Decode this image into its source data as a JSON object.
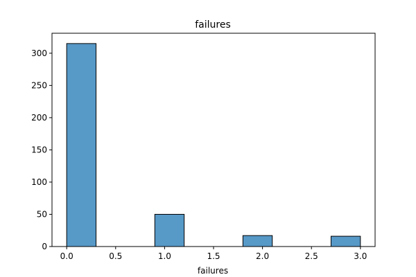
{
  "chart_data": {
    "type": "bar",
    "title": "failures",
    "xlabel": "failures",
    "ylabel": "",
    "x_ticks": [
      0.0,
      0.5,
      1.0,
      1.5,
      2.0,
      2.5,
      3.0
    ],
    "x_tick_labels": [
      "0.0",
      "0.5",
      "1.0",
      "1.5",
      "2.0",
      "2.5",
      "3.0"
    ],
    "y_ticks": [
      0,
      50,
      100,
      150,
      200,
      250,
      300
    ],
    "y_tick_labels": [
      "0",
      "50",
      "100",
      "150",
      "200",
      "250",
      "300"
    ],
    "xlim": [
      -0.15,
      3.15
    ],
    "ylim": [
      0,
      331
    ],
    "bins": [
      {
        "x0": 0.0,
        "x1": 0.3,
        "count": 315
      },
      {
        "x0": 0.3,
        "x1": 0.6,
        "count": 0
      },
      {
        "x0": 0.6,
        "x1": 0.9,
        "count": 0
      },
      {
        "x0": 0.9,
        "x1": 1.2,
        "count": 50
      },
      {
        "x0": 1.2,
        "x1": 1.5,
        "count": 0
      },
      {
        "x0": 1.5,
        "x1": 1.8,
        "count": 0
      },
      {
        "x0": 1.8,
        "x1": 2.1,
        "count": 17
      },
      {
        "x0": 2.1,
        "x1": 2.4,
        "count": 0
      },
      {
        "x0": 2.4,
        "x1": 2.7,
        "count": 0
      },
      {
        "x0": 2.7,
        "x1": 3.0,
        "count": 16
      }
    ],
    "grid": false,
    "legend": "none",
    "bar_color": "#5799c7",
    "edge_color": "#000000"
  }
}
